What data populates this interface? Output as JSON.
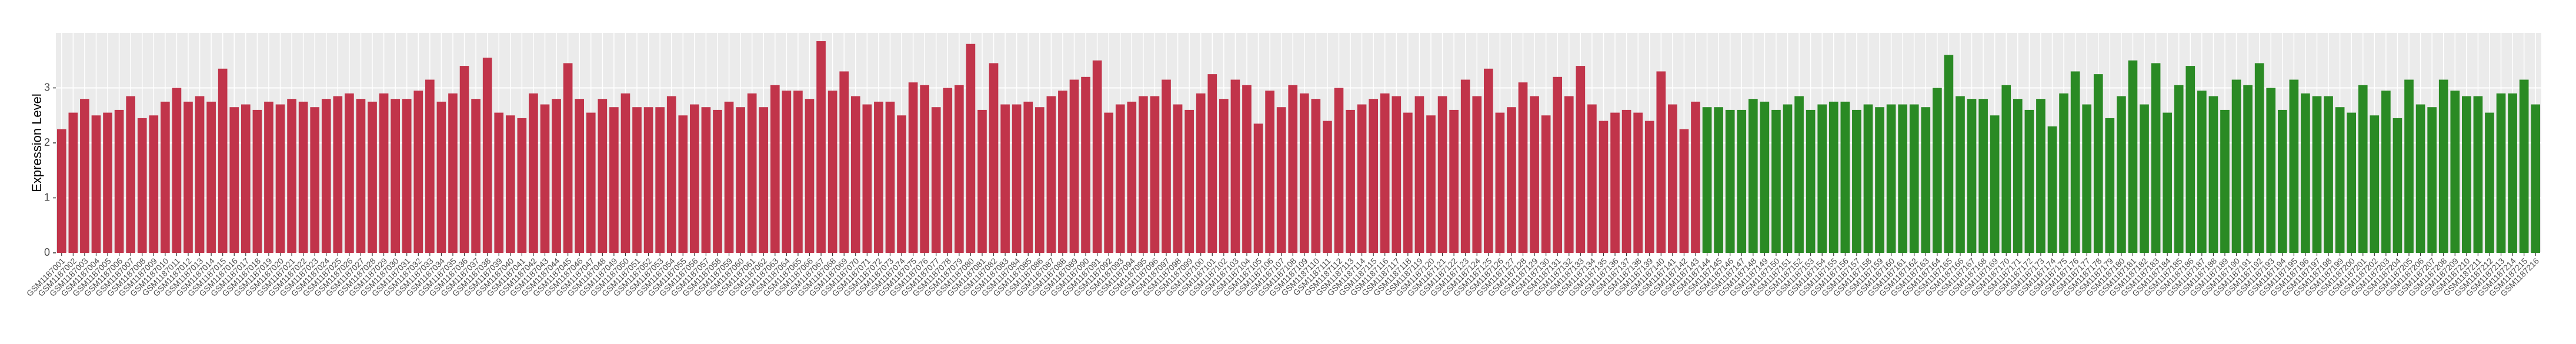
{
  "chart_data": {
    "type": "bar",
    "y_label": "Expression Level",
    "categories": [
      "GSM1187001",
      "GSM1187002",
      "GSM1187003",
      "GSM1187004",
      "GSM1187005",
      "GSM1187006",
      "GSM1187007",
      "GSM1187008",
      "GSM1187009",
      "GSM1187010",
      "GSM1187011",
      "GSM1187012",
      "GSM1187013",
      "GSM1187014",
      "GSM1187015",
      "GSM1187016",
      "GSM1187017",
      "GSM1187018",
      "GSM1187019",
      "GSM1187020",
      "GSM1187021",
      "GSM1187022",
      "GSM1187023",
      "GSM1187024",
      "GSM1187025",
      "GSM1187026",
      "GSM1187027",
      "GSM1187028",
      "GSM1187029",
      "GSM1187030",
      "GSM1187031",
      "GSM1187032",
      "GSM1187033",
      "GSM1187034",
      "GSM1187035",
      "GSM1187036",
      "GSM1187037",
      "GSM1187038",
      "GSM1187039",
      "GSM1187040",
      "GSM1187041",
      "GSM1187042",
      "GSM1187043",
      "GSM1187044",
      "GSM1187045",
      "GSM1187046",
      "GSM1187047",
      "GSM1187048",
      "GSM1187049",
      "GSM1187050",
      "GSM1187051",
      "GSM1187052",
      "GSM1187053",
      "GSM1187054",
      "GSM1187055",
      "GSM1187056",
      "GSM1187057",
      "GSM1187058",
      "GSM1187059",
      "GSM1187060",
      "GSM1187061",
      "GSM1187062",
      "GSM1187063",
      "GSM1187064",
      "GSM1187065",
      "GSM1187066",
      "GSM1187067",
      "GSM1187068",
      "GSM1187069",
      "GSM1187070",
      "GSM1187071",
      "GSM1187072",
      "GSM1187073",
      "GSM1187074",
      "GSM1187075",
      "GSM1187076",
      "GSM1187077",
      "GSM1187078",
      "GSM1187079",
      "GSM1187080",
      "GSM1187081",
      "GSM1187082",
      "GSM1187083",
      "GSM1187084",
      "GSM1187085",
      "GSM1187086",
      "GSM1187087",
      "GSM1187088",
      "GSM1187089",
      "GSM1187090",
      "GSM1187091",
      "GSM1187092",
      "GSM1187093",
      "GSM1187094",
      "GSM1187095",
      "GSM1187096",
      "GSM1187097",
      "GSM1187098",
      "GSM1187099",
      "GSM1187100",
      "GSM1187101",
      "GSM1187102",
      "GSM1187103",
      "GSM1187104",
      "GSM1187105",
      "GSM1187106",
      "GSM1187107",
      "GSM1187108",
      "GSM1187109",
      "GSM1187110",
      "GSM1187111",
      "GSM1187112",
      "GSM1187113",
      "GSM1187114",
      "GSM1187115",
      "GSM1187116",
      "GSM1187117",
      "GSM1187118",
      "GSM1187119",
      "GSM1187120",
      "GSM1187121",
      "GSM1187122",
      "GSM1187123",
      "GSM1187124",
      "GSM1187125",
      "GSM1187126",
      "GSM1187127",
      "GSM1187128",
      "GSM1187129",
      "GSM1187130",
      "GSM1187131",
      "GSM1187132",
      "GSM1187133",
      "GSM1187134",
      "GSM1187135",
      "GSM1187136",
      "GSM1187137",
      "GSM1187138",
      "GSM1187139",
      "GSM1187140",
      "GSM1187141",
      "GSM1187142",
      "GSM1187143",
      "GSM1187144",
      "GSM1187145",
      "GSM1187146",
      "GSM1187147",
      "GSM1187148",
      "GSM1187149",
      "GSM1187150",
      "GSM1187151",
      "GSM1187152",
      "GSM1187153",
      "GSM1187154",
      "GSM1187155",
      "GSM1187156",
      "GSM1187157",
      "GSM1187158",
      "GSM1187159",
      "GSM1187160",
      "GSM1187161",
      "GSM1187162",
      "GSM1187163",
      "GSM1187164",
      "GSM1187165",
      "GSM1187166",
      "GSM1187167",
      "GSM1187168",
      "GSM1187169",
      "GSM1187170",
      "GSM1187171",
      "GSM1187172",
      "GSM1187173",
      "GSM1187174",
      "GSM1187175",
      "GSM1187176",
      "GSM1187177",
      "GSM1187178",
      "GSM1187179",
      "GSM1187180",
      "GSM1187181",
      "GSM1187182",
      "GSM1187183",
      "GSM1187184",
      "GSM1187185",
      "GSM1187186",
      "GSM1187187",
      "GSM1187188",
      "GSM1187189",
      "GSM1187190",
      "GSM1187191",
      "GSM1187192",
      "GSM1187193",
      "GSM1187194",
      "GSM1187195",
      "GSM1187196",
      "GSM1187197",
      "GSM1187198",
      "GSM1187199",
      "GSM1187200",
      "GSM1187201",
      "GSM1187202",
      "GSM1187203",
      "GSM1187204",
      "GSM1187205",
      "GSM1187206",
      "GSM1187207",
      "GSM1187208",
      "GSM1187209",
      "GSM1187210",
      "GSM1187211",
      "GSM1187212",
      "GSM1187213",
      "GSM1187214",
      "GSM1187215",
      "GSM1187216"
    ],
    "values": [
      2.25,
      2.55,
      2.8,
      2.5,
      2.55,
      2.6,
      2.85,
      2.45,
      2.5,
      2.75,
      3.0,
      2.75,
      2.85,
      2.75,
      3.35,
      2.65,
      2.7,
      2.6,
      2.75,
      2.7,
      2.8,
      2.75,
      2.65,
      2.8,
      2.85,
      2.9,
      2.8,
      2.75,
      2.9,
      2.8,
      2.8,
      2.95,
      3.15,
      2.75,
      2.9,
      3.4,
      2.8,
      3.55,
      2.55,
      2.5,
      2.45,
      2.9,
      2.7,
      2.8,
      3.45,
      2.8,
      2.55,
      2.8,
      2.65,
      2.9,
      2.65,
      2.65,
      2.65,
      2.85,
      2.5,
      2.7,
      2.65,
      2.6,
      2.75,
      2.65,
      2.9,
      2.65,
      3.05,
      2.95,
      2.95,
      2.8,
      3.85,
      2.95,
      3.3,
      2.85,
      2.7,
      2.75,
      2.75,
      2.5,
      3.1,
      3.05,
      2.65,
      3.0,
      3.05,
      3.8,
      2.6,
      3.45,
      2.7,
      2.7,
      2.75,
      2.65,
      2.85,
      2.95,
      3.15,
      3.2,
      3.5,
      2.55,
      2.7,
      2.75,
      2.85,
      2.85,
      3.15,
      2.7,
      2.6,
      2.9,
      3.25,
      2.8,
      3.15,
      3.05,
      2.35,
      2.95,
      2.65,
      3.05,
      2.9,
      2.8,
      2.4,
      3.0,
      2.6,
      2.7,
      2.8,
      2.9,
      2.85,
      2.55,
      2.85,
      2.5,
      2.85,
      2.6,
      3.15,
      2.85,
      3.35,
      2.55,
      2.65,
      3.1,
      2.85,
      2.5,
      3.2,
      2.85,
      3.4,
      2.7,
      2.4,
      2.55,
      2.6,
      2.55,
      2.4,
      3.3,
      2.7,
      2.25,
      2.75,
      2.65,
      2.65,
      2.6,
      2.6,
      2.8,
      2.75,
      2.6,
      2.7,
      2.85,
      2.6,
      2.7,
      2.75,
      2.75,
      2.6,
      2.7,
      2.65,
      2.7,
      2.7,
      2.7,
      2.65,
      3.0,
      3.6,
      2.85,
      2.8,
      2.8,
      2.5,
      3.05,
      2.8,
      2.6,
      2.8,
      2.3,
      2.9,
      3.3,
      2.7,
      3.25,
      2.45,
      2.85,
      3.5,
      2.7,
      3.45,
      2.55,
      3.05,
      3.4,
      2.95,
      2.85,
      2.6,
      3.15,
      3.05,
      3.45,
      3.0,
      2.6,
      3.15,
      2.9,
      2.85,
      2.85,
      2.65,
      2.55,
      3.05,
      2.5,
      2.95,
      2.45,
      3.15,
      2.7,
      2.65,
      3.15,
      2.95,
      2.85,
      2.85,
      2.55,
      2.9,
      2.9,
      3.15,
      2.7
    ],
    "colors": [
      "#c1344a",
      "#c1344a",
      "#c1344a",
      "#c1344a",
      "#c1344a",
      "#c1344a",
      "#c1344a",
      "#c1344a",
      "#c1344a",
      "#c1344a",
      "#c1344a",
      "#c1344a",
      "#c1344a",
      "#c1344a",
      "#c1344a",
      "#c1344a",
      "#c1344a",
      "#c1344a",
      "#c1344a",
      "#c1344a",
      "#c1344a",
      "#c1344a",
      "#c1344a",
      "#c1344a",
      "#c1344a",
      "#c1344a",
      "#c1344a",
      "#c1344a",
      "#c1344a",
      "#c1344a",
      "#c1344a",
      "#c1344a",
      "#c1344a",
      "#c1344a",
      "#c1344a",
      "#c1344a",
      "#c1344a",
      "#c1344a",
      "#c1344a",
      "#c1344a",
      "#c1344a",
      "#c1344a",
      "#c1344a",
      "#c1344a",
      "#c1344a",
      "#c1344a",
      "#c1344a",
      "#c1344a",
      "#c1344a",
      "#c1344a",
      "#c1344a",
      "#c1344a",
      "#c1344a",
      "#c1344a",
      "#c1344a",
      "#c1344a",
      "#c1344a",
      "#c1344a",
      "#c1344a",
      "#c1344a",
      "#c1344a",
      "#c1344a",
      "#c1344a",
      "#c1344a",
      "#c1344a",
      "#c1344a",
      "#c1344a",
      "#c1344a",
      "#c1344a",
      "#c1344a",
      "#c1344a",
      "#c1344a",
      "#c1344a",
      "#c1344a",
      "#c1344a",
      "#c1344a",
      "#c1344a",
      "#c1344a",
      "#c1344a",
      "#c1344a",
      "#c1344a",
      "#c1344a",
      "#c1344a",
      "#c1344a",
      "#c1344a",
      "#c1344a",
      "#c1344a",
      "#c1344a",
      "#c1344a",
      "#c1344a",
      "#c1344a",
      "#c1344a",
      "#c1344a",
      "#c1344a",
      "#c1344a",
      "#c1344a",
      "#c1344a",
      "#c1344a",
      "#c1344a",
      "#c1344a",
      "#c1344a",
      "#c1344a",
      "#c1344a",
      "#c1344a",
      "#c1344a",
      "#c1344a",
      "#c1344a",
      "#c1344a",
      "#c1344a",
      "#c1344a",
      "#c1344a",
      "#c1344a",
      "#c1344a",
      "#c1344a",
      "#c1344a",
      "#c1344a",
      "#c1344a",
      "#c1344a",
      "#c1344a",
      "#c1344a",
      "#c1344a",
      "#c1344a",
      "#c1344a",
      "#c1344a",
      "#c1344a",
      "#c1344a",
      "#c1344a",
      "#c1344a",
      "#c1344a",
      "#c1344a",
      "#c1344a",
      "#c1344a",
      "#c1344a",
      "#c1344a",
      "#c1344a",
      "#c1344a",
      "#c1344a",
      "#c1344a",
      "#c1344a",
      "#c1344a",
      "#c1344a",
      "#c1344a",
      "#c1344a",
      "#2a8a24",
      "#2a8a24",
      "#2a8a24",
      "#2a8a24",
      "#2a8a24",
      "#2a8a24",
      "#2a8a24",
      "#2a8a24",
      "#2a8a24",
      "#2a8a24",
      "#2a8a24",
      "#2a8a24",
      "#2a8a24",
      "#2a8a24",
      "#2a8a24",
      "#2a8a24",
      "#2a8a24",
      "#2a8a24",
      "#2a8a24",
      "#2a8a24",
      "#2a8a24",
      "#2a8a24",
      "#2a8a24",
      "#2a8a24",
      "#2a8a24",
      "#2a8a24",
      "#2a8a24",
      "#2a8a24",
      "#2a8a24",
      "#2a8a24",
      "#2a8a24",
      "#2a8a24",
      "#2a8a24",
      "#2a8a24",
      "#2a8a24",
      "#2a8a24",
      "#2a8a24",
      "#2a8a24",
      "#2a8a24",
      "#2a8a24",
      "#2a8a24",
      "#2a8a24",
      "#2a8a24",
      "#2a8a24",
      "#2a8a24",
      "#2a8a24",
      "#2a8a24",
      "#2a8a24",
      "#2a8a24",
      "#2a8a24",
      "#2a8a24",
      "#2a8a24",
      "#2a8a24",
      "#2a8a24",
      "#2a8a24",
      "#2a8a24",
      "#2a8a24",
      "#2a8a24",
      "#2a8a24",
      "#2a8a24",
      "#2a8a24",
      "#2a8a24",
      "#2a8a24",
      "#2a8a24",
      "#2a8a24",
      "#2a8a24",
      "#2a8a24",
      "#2a8a24",
      "#2a8a24",
      "#2a8a24",
      "#2a8a24",
      "#2a8a24",
      "#2a8a24"
    ],
    "ylim": [
      0,
      4
    ],
    "yticks": [
      0,
      1,
      2,
      3
    ],
    "grid": true
  }
}
